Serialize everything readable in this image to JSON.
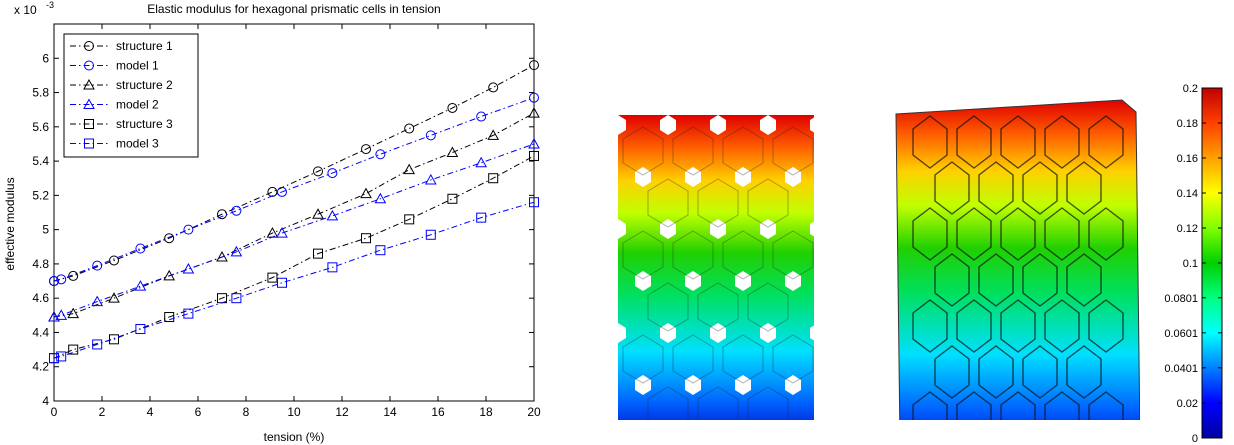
{
  "chart_data": {
    "type": "line",
    "title": "Elastic modulus for hexagonal prismatic cells in tension",
    "exponent_prefix": "x 10",
    "exponent_power": "-3",
    "xlabel": "tension (%)",
    "ylabel": "effective modulus",
    "xlim": [
      0,
      20
    ],
    "ylim": [
      4,
      6.2
    ],
    "x_ticks": [
      0,
      2,
      4,
      6,
      8,
      10,
      12,
      14,
      16,
      18,
      20
    ],
    "y_ticks": [
      4,
      4.2,
      4.4,
      4.6,
      4.8,
      5,
      5.2,
      5.4,
      5.6,
      5.8,
      6
    ],
    "y_tick_labels": [
      "4",
      "4.2",
      "4.4",
      "4.6",
      "4.8",
      "5",
      "5.2",
      "5.4",
      "5.6",
      "5.8",
      "6"
    ],
    "grid": false,
    "legend_position": "top-left",
    "series": [
      {
        "name": "structure 1",
        "color": "#000000",
        "marker": "circle",
        "x": [
          0,
          0.8,
          2.5,
          4.8,
          7.0,
          9.1,
          11.0,
          13.0,
          14.8,
          16.6,
          18.3,
          20.0
        ],
        "y": [
          4.7,
          4.73,
          4.82,
          4.95,
          5.09,
          5.22,
          5.34,
          5.47,
          5.59,
          5.71,
          5.83,
          5.96
        ]
      },
      {
        "name": "model 1",
        "color": "#0000ff",
        "marker": "circle",
        "x": [
          0,
          0.3,
          1.8,
          3.6,
          5.6,
          7.6,
          9.5,
          11.6,
          13.6,
          15.7,
          17.8,
          20.0
        ],
        "y": [
          4.7,
          4.71,
          4.79,
          4.89,
          5.0,
          5.11,
          5.22,
          5.33,
          5.44,
          5.55,
          5.66,
          5.77
        ]
      },
      {
        "name": "structure 2",
        "color": "#000000",
        "marker": "triangle",
        "x": [
          0,
          0.8,
          2.5,
          4.8,
          7.0,
          9.1,
          11.0,
          13.0,
          14.8,
          16.6,
          18.3,
          20.0
        ],
        "y": [
          4.49,
          4.51,
          4.6,
          4.73,
          4.84,
          4.98,
          5.09,
          5.21,
          5.35,
          5.45,
          5.55,
          5.68
        ]
      },
      {
        "name": "model 2",
        "color": "#0000ff",
        "marker": "triangle",
        "x": [
          0,
          0.3,
          1.8,
          3.6,
          5.6,
          7.6,
          9.5,
          11.6,
          13.6,
          15.7,
          17.8,
          20.0
        ],
        "y": [
          4.49,
          4.5,
          4.58,
          4.67,
          4.77,
          4.87,
          4.98,
          5.08,
          5.18,
          5.29,
          5.39,
          5.5
        ]
      },
      {
        "name": "structure 3",
        "color": "#000000",
        "marker": "square",
        "x": [
          0,
          0.8,
          2.5,
          4.8,
          7.0,
          9.1,
          11.0,
          13.0,
          14.8,
          16.6,
          18.3,
          20.0
        ],
        "y": [
          4.25,
          4.3,
          4.36,
          4.49,
          4.6,
          4.72,
          4.86,
          4.95,
          5.06,
          5.18,
          5.3,
          5.43
        ]
      },
      {
        "name": "model 3",
        "color": "#0000ff",
        "marker": "square",
        "x": [
          0,
          0.3,
          1.8,
          3.6,
          5.6,
          7.6,
          9.5,
          11.6,
          13.6,
          15.7,
          17.8,
          20.0
        ],
        "y": [
          4.25,
          4.26,
          4.33,
          4.42,
          4.51,
          4.6,
          4.69,
          4.78,
          4.88,
          4.97,
          5.07,
          5.16
        ]
      }
    ]
  },
  "colorbar": {
    "min": 0,
    "max": 0.2,
    "tick_labels": [
      "0.2",
      "0.18",
      "0.16",
      "0.14",
      "0.12",
      "0.1",
      "0.0801",
      "0.0601",
      "0.0401",
      "0.02",
      "0"
    ],
    "tick_values": [
      0.2,
      0.18,
      0.16,
      0.14,
      0.12,
      0.1,
      0.0801,
      0.0601,
      0.0401,
      0.02,
      0
    ],
    "colors": [
      "#0000a0",
      "#0000ff",
      "#0080ff",
      "#00ffff",
      "#00ff80",
      "#00d000",
      "#80ff00",
      "#ffff00",
      "#ffa000",
      "#ff4000",
      "#c00000"
    ]
  }
}
